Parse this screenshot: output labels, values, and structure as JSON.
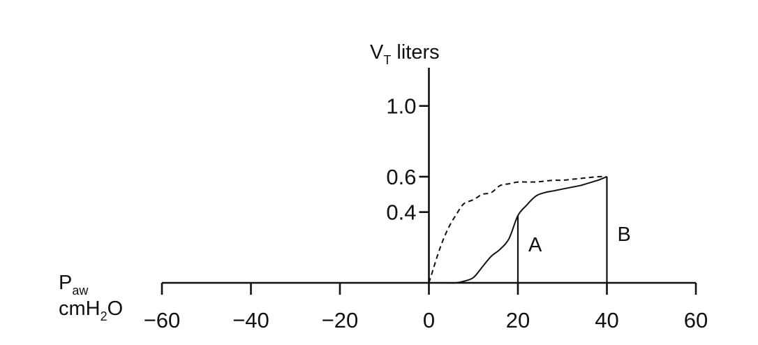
{
  "chart_data": {
    "type": "line",
    "xlabel": "P",
    "xlabel_sub": "aw",
    "xlabel_line2_a": "cmH",
    "xlabel_line2_sub": "2",
    "xlabel_line2_b": "O",
    "ylabel": "V",
    "ylabel_sub": "T",
    "ylabel_rest": " liters",
    "xlim": [
      -60,
      60
    ],
    "ylim": [
      0,
      1.2
    ],
    "x_ticks": [
      -60,
      -40,
      -20,
      0,
      20,
      40,
      60
    ],
    "x_tick_labels": [
      "−60",
      "−40",
      "−20",
      "0",
      "20",
      "40",
      "60"
    ],
    "y_ticks": [
      0.4,
      0.6,
      1.0
    ],
    "y_tick_labels": [
      "0.4",
      "0.6",
      "1.0"
    ],
    "grid": false,
    "series": [
      {
        "style": "solid",
        "x": [
          0,
          3,
          6,
          8,
          10,
          12,
          14,
          16,
          18,
          20,
          22,
          24,
          26,
          28,
          30,
          32,
          34,
          36,
          38,
          40
        ],
        "y": [
          0,
          0,
          0,
          0.01,
          0.03,
          0.09,
          0.15,
          0.19,
          0.25,
          0.38,
          0.44,
          0.49,
          0.51,
          0.52,
          0.53,
          0.54,
          0.55,
          0.565,
          0.58,
          0.6
        ]
      },
      {
        "style": "dashed",
        "x": [
          0,
          1,
          2,
          3,
          4,
          5,
          6,
          7,
          8,
          10,
          12,
          14,
          16,
          18,
          20,
          22,
          24,
          26,
          28,
          30,
          32,
          34,
          36,
          38,
          40
        ],
        "y": [
          0,
          0.08,
          0.16,
          0.23,
          0.29,
          0.34,
          0.38,
          0.42,
          0.45,
          0.47,
          0.5,
          0.51,
          0.55,
          0.56,
          0.57,
          0.57,
          0.57,
          0.575,
          0.58,
          0.58,
          0.585,
          0.59,
          0.595,
          0.6,
          0.6
        ]
      }
    ],
    "markers": [
      {
        "label": "A",
        "x": 20,
        "y": 0.38
      },
      {
        "label": "B",
        "x": 40,
        "y": 0.6
      }
    ]
  }
}
